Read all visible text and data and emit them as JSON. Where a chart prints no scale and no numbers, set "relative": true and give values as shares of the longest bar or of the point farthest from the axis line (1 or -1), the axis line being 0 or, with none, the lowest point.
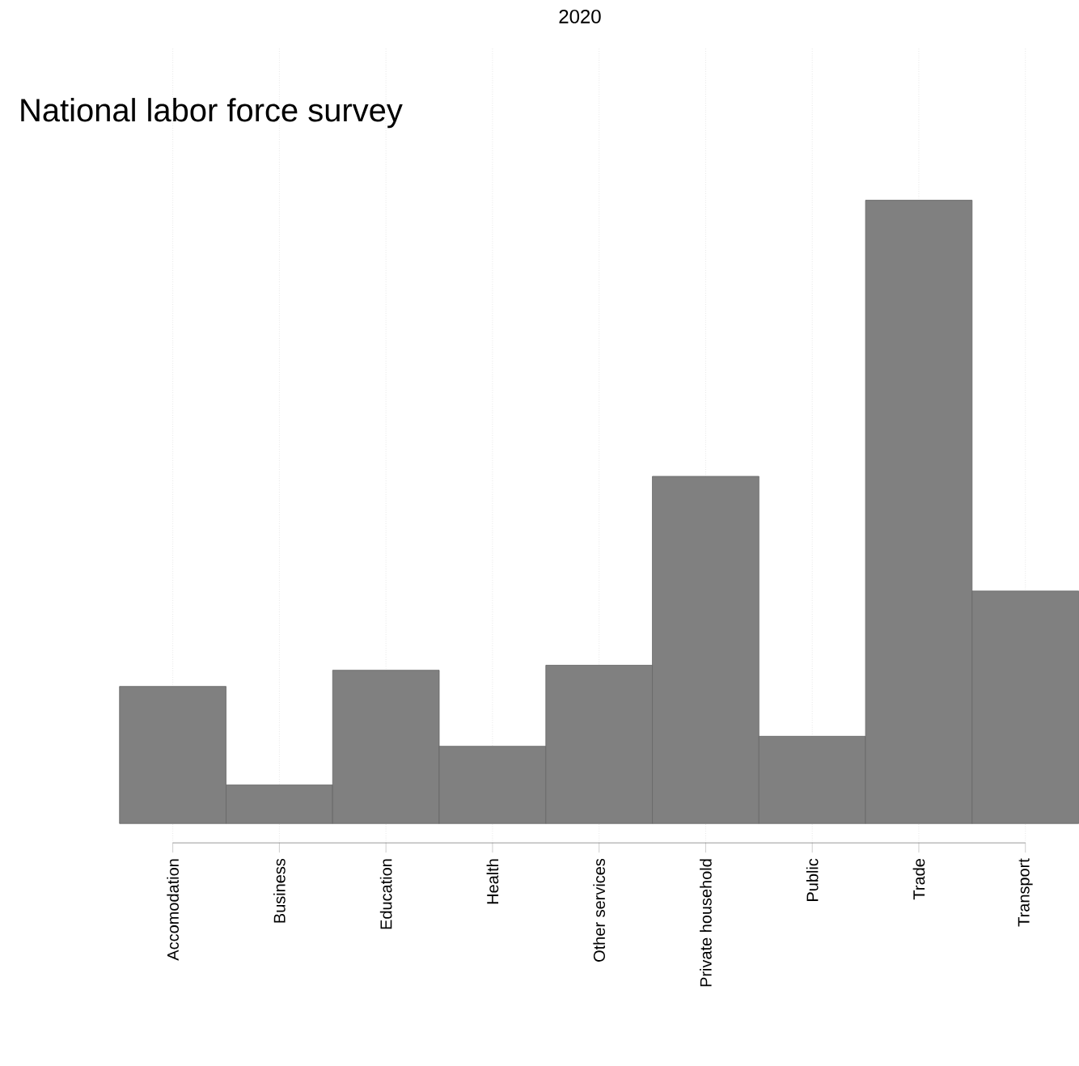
{
  "chart_data": {
    "type": "bar",
    "title": "2020",
    "subtitle": "National labor force survey",
    "relative": true,
    "grid": "x",
    "color": "#808080",
    "categories": [
      "Accomodation",
      "Business",
      "Education",
      "Health",
      "Other services",
      "Private household",
      "Public",
      "Trade",
      "Transport"
    ],
    "values": [
      0.22,
      0.062,
      0.246,
      0.124,
      0.254,
      0.557,
      0.14,
      1,
      0.373
    ]
  }
}
